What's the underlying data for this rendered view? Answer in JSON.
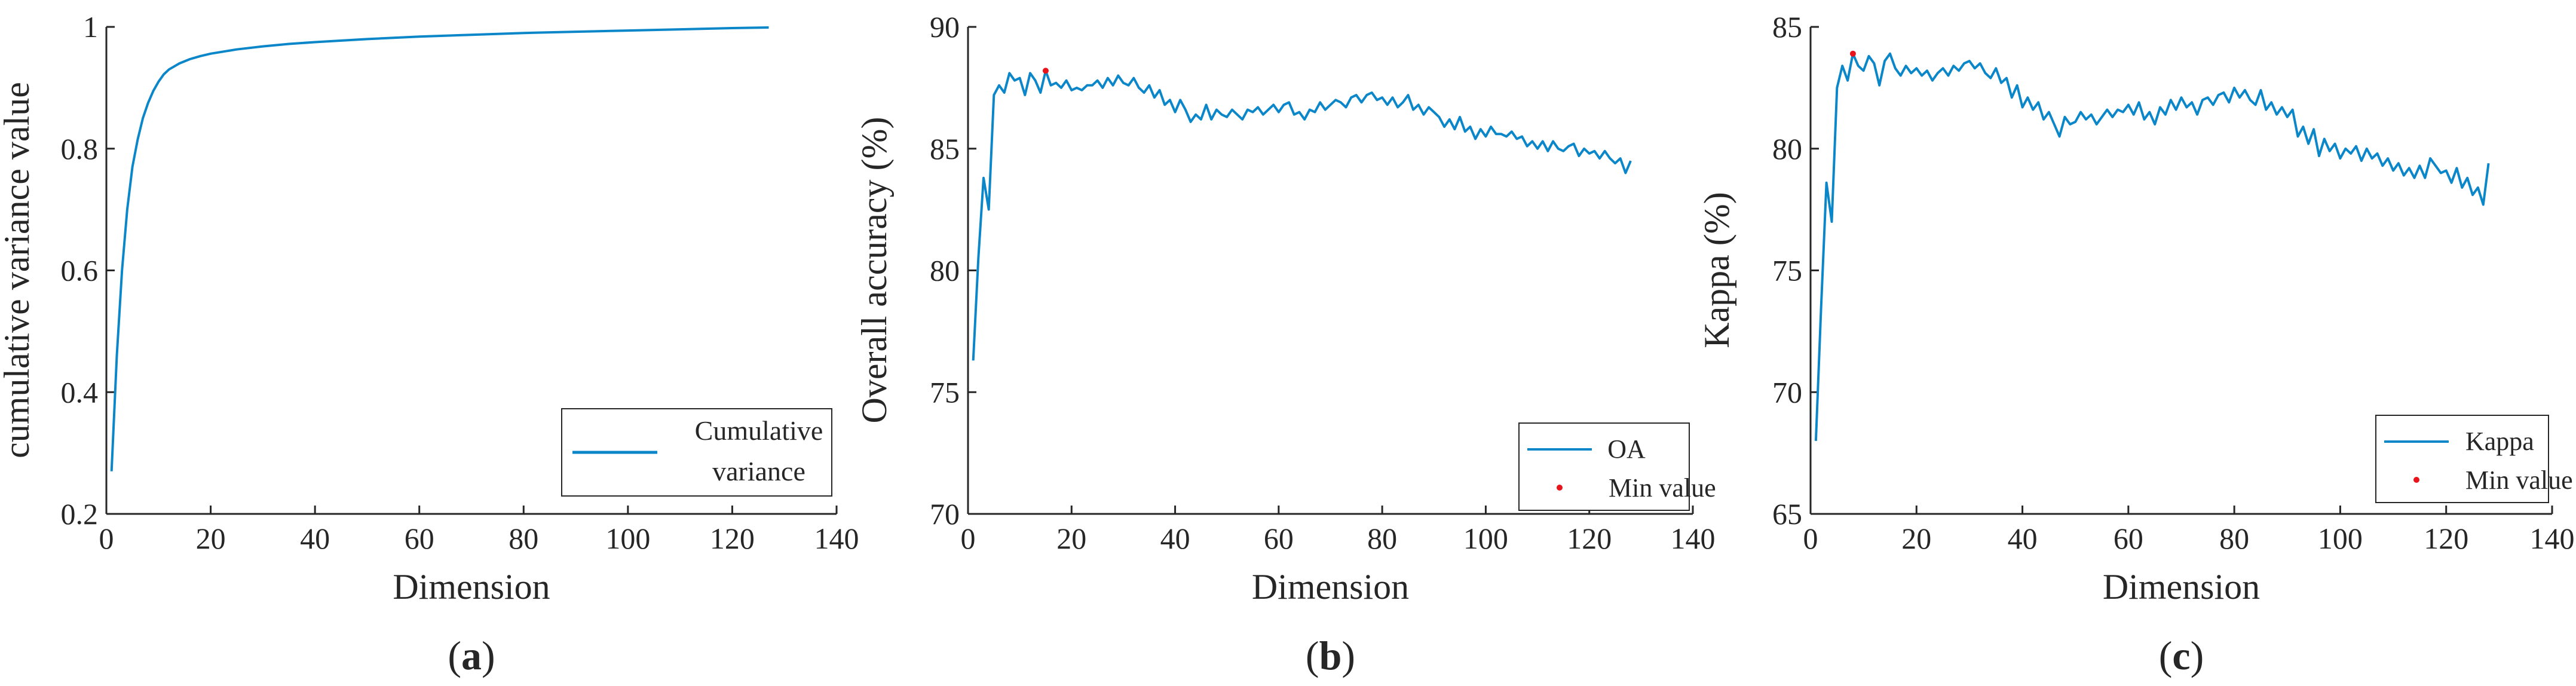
{
  "colors": {
    "line": "#0b87c9",
    "marker": "#e8131b",
    "axis": "#262626",
    "legend_border": "#262626"
  },
  "chart_data": [
    {
      "type": "line",
      "panel_label": "(a)",
      "panel_letter": "a",
      "xlabel": "Dimension",
      "ylabel": "cumulative variance value",
      "xlim": [
        0,
        140
      ],
      "ylim": [
        0.2,
        1
      ],
      "xticks": [
        0,
        20,
        40,
        60,
        80,
        100,
        120,
        140
      ],
      "xtick_labels": [
        "0",
        "20",
        "40",
        "60",
        "80",
        "100",
        "120",
        "140"
      ],
      "yticks": [
        0.2,
        0.4,
        0.6,
        0.8,
        1
      ],
      "ytick_labels": [
        "0.2",
        "0.4",
        "0.6",
        "0.8",
        "1"
      ],
      "grid": false,
      "legend_position": "bottom-right",
      "legend": [
        "Cumulative",
        "variance"
      ],
      "series": [
        {
          "name": "Cumulative variance",
          "x": [
            1,
            2,
            3,
            4,
            5,
            6,
            7,
            8,
            9,
            10,
            11,
            12,
            14,
            16,
            18,
            20,
            25,
            30,
            35,
            40,
            50,
            60,
            70,
            80,
            90,
            100,
            110,
            120,
            127
          ],
          "values": [
            0.27,
            0.46,
            0.6,
            0.7,
            0.77,
            0.815,
            0.85,
            0.875,
            0.895,
            0.91,
            0.922,
            0.93,
            0.94,
            0.947,
            0.952,
            0.956,
            0.963,
            0.968,
            0.972,
            0.975,
            0.98,
            0.984,
            0.987,
            0.99,
            0.992,
            0.994,
            0.996,
            0.998,
            0.999
          ]
        }
      ]
    },
    {
      "type": "line",
      "panel_label": "(b)",
      "panel_letter": "b",
      "xlabel": "Dimension",
      "ylabel": "Overall accuracy (%)",
      "xlim": [
        0,
        140
      ],
      "ylim": [
        70,
        90
      ],
      "xticks": [
        0,
        20,
        40,
        60,
        80,
        100,
        120,
        140
      ],
      "xtick_labels": [
        "0",
        "20",
        "40",
        "60",
        "80",
        "100",
        "120",
        "140"
      ],
      "yticks": [
        70,
        75,
        80,
        85,
        90
      ],
      "ytick_labels": [
        "70",
        "75",
        "80",
        "85",
        "90"
      ],
      "grid": false,
      "legend_position": "bottom-right",
      "legend": [
        "OA",
        "Min value"
      ],
      "series": [
        {
          "name": "OA",
          "x": [
            1,
            2,
            3,
            4,
            5,
            6,
            7,
            8,
            9,
            10,
            11,
            12,
            13,
            14,
            15,
            16,
            17,
            18,
            19,
            20,
            21,
            22,
            23,
            24,
            25,
            26,
            27,
            28,
            29,
            30,
            31,
            32,
            33,
            34,
            35,
            36,
            37,
            38,
            39,
            40,
            41,
            42,
            43,
            44,
            45,
            46,
            47,
            48,
            49,
            50,
            51,
            52,
            53,
            54,
            55,
            56,
            57,
            58,
            59,
            60,
            61,
            62,
            63,
            64,
            65,
            66,
            67,
            68,
            69,
            70,
            71,
            72,
            73,
            74,
            75,
            76,
            77,
            78,
            79,
            80,
            81,
            82,
            83,
            84,
            85,
            86,
            87,
            88,
            89,
            90,
            91,
            92,
            93,
            94,
            95,
            96,
            97,
            98,
            99,
            100,
            101,
            102,
            103,
            104,
            105,
            106,
            107,
            108,
            109,
            110,
            111,
            112,
            113,
            114,
            115,
            116,
            117,
            118,
            119,
            120,
            121,
            122,
            123,
            124,
            125,
            126,
            127,
            128
          ],
          "values": [
            76.3,
            80.5,
            83.8,
            82.5,
            87.2,
            87.6,
            87.3,
            88.1,
            87.8,
            87.9,
            87.2,
            88.1,
            87.8,
            87.3,
            88.2,
            87.6,
            87.7,
            87.5,
            87.8,
            87.4,
            87.5,
            87.4,
            87.6,
            87.6,
            87.8,
            87.5,
            87.9,
            87.6,
            88.0,
            87.7,
            87.6,
            87.9,
            87.5,
            87.3,
            87.6,
            87.1,
            87.4,
            86.8,
            87.0,
            86.5,
            87.0,
            86.6,
            86.1,
            86.4,
            86.2,
            86.8,
            86.2,
            86.6,
            86.4,
            86.3,
            86.6,
            86.4,
            86.2,
            86.6,
            86.5,
            86.7,
            86.4,
            86.6,
            86.8,
            86.5,
            86.8,
            86.9,
            86.4,
            86.5,
            86.2,
            86.6,
            86.5,
            86.9,
            86.6,
            86.8,
            87.0,
            86.9,
            86.7,
            87.1,
            87.2,
            86.9,
            87.2,
            87.3,
            87.0,
            87.1,
            86.8,
            87.1,
            86.7,
            86.9,
            87.2,
            86.6,
            86.8,
            86.4,
            86.7,
            86.5,
            86.3,
            85.9,
            86.2,
            85.8,
            86.3,
            85.7,
            85.9,
            85.4,
            85.8,
            85.5,
            85.9,
            85.6,
            85.6,
            85.5,
            85.7,
            85.4,
            85.5,
            85.1,
            85.3,
            85.0,
            85.3,
            84.9,
            85.3,
            85.0,
            84.9,
            85.1,
            85.2,
            84.7,
            85.0,
            84.8,
            84.9,
            84.6,
            84.9,
            84.6,
            84.4,
            84.6,
            84.0,
            84.5
          ]
        }
      ],
      "marker_point": {
        "label": "Min value",
        "x": 15,
        "y": 88.2
      }
    },
    {
      "type": "line",
      "panel_label": "(c)",
      "panel_letter": "c",
      "xlabel": "Dimension",
      "ylabel": "Kappa (%)",
      "xlim": [
        0,
        140
      ],
      "ylim": [
        65,
        85
      ],
      "xticks": [
        0,
        20,
        40,
        60,
        80,
        100,
        120,
        140
      ],
      "xtick_labels": [
        "0",
        "20",
        "40",
        "60",
        "80",
        "100",
        "120",
        "140"
      ],
      "yticks": [
        65,
        70,
        75,
        80,
        85
      ],
      "ytick_labels": [
        "65",
        "70",
        "75",
        "80",
        "85"
      ],
      "grid": false,
      "legend_position": "bottom-right",
      "legend": [
        "Kappa",
        "Min value"
      ],
      "series": [
        {
          "name": "Kappa",
          "x": [
            1,
            2,
            3,
            4,
            5,
            6,
            7,
            8,
            9,
            10,
            11,
            12,
            13,
            14,
            15,
            16,
            17,
            18,
            19,
            20,
            21,
            22,
            23,
            24,
            25,
            26,
            27,
            28,
            29,
            30,
            31,
            32,
            33,
            34,
            35,
            36,
            37,
            38,
            39,
            40,
            41,
            42,
            43,
            44,
            45,
            46,
            47,
            48,
            49,
            50,
            51,
            52,
            53,
            54,
            55,
            56,
            57,
            58,
            59,
            60,
            61,
            62,
            63,
            64,
            65,
            66,
            67,
            68,
            69,
            70,
            71,
            72,
            73,
            74,
            75,
            76,
            77,
            78,
            79,
            80,
            81,
            82,
            83,
            84,
            85,
            86,
            87,
            88,
            89,
            90,
            91,
            92,
            93,
            94,
            95,
            96,
            97,
            98,
            99,
            100,
            101,
            102,
            103,
            104,
            105,
            106,
            107,
            108,
            109,
            110,
            111,
            112,
            113,
            114,
            115,
            116,
            117,
            118,
            119,
            120,
            121,
            122,
            123,
            124,
            125,
            126,
            127,
            128
          ],
          "values": [
            68.0,
            73.5,
            78.6,
            77.0,
            82.5,
            83.4,
            82.8,
            83.9,
            83.4,
            83.2,
            83.8,
            83.5,
            82.6,
            83.6,
            83.9,
            83.3,
            83.0,
            83.4,
            83.1,
            83.3,
            83.0,
            83.2,
            82.8,
            83.1,
            83.3,
            83.0,
            83.4,
            83.2,
            83.5,
            83.6,
            83.3,
            83.5,
            83.1,
            82.9,
            83.3,
            82.7,
            82.9,
            82.1,
            82.6,
            81.7,
            82.1,
            81.6,
            81.9,
            81.2,
            81.5,
            81.0,
            80.5,
            81.3,
            81.0,
            81.1,
            81.5,
            81.2,
            81.4,
            81.0,
            81.3,
            81.6,
            81.3,
            81.6,
            81.5,
            81.8,
            81.4,
            81.9,
            81.2,
            81.5,
            81.0,
            81.7,
            81.4,
            82.0,
            81.6,
            82.1,
            81.7,
            81.9,
            81.4,
            82.0,
            82.1,
            81.8,
            82.2,
            82.3,
            81.9,
            82.5,
            82.1,
            82.4,
            82.0,
            81.8,
            82.4,
            81.6,
            81.9,
            81.4,
            81.7,
            81.3,
            81.6,
            80.5,
            80.9,
            80.2,
            80.8,
            79.7,
            80.4,
            79.9,
            80.2,
            79.6,
            80.0,
            79.8,
            80.1,
            79.5,
            80.0,
            79.6,
            79.8,
            79.3,
            79.6,
            79.1,
            79.4,
            78.9,
            79.2,
            78.8,
            79.3,
            78.8,
            79.6,
            79.3,
            79.0,
            79.1,
            78.6,
            79.2,
            78.4,
            78.8,
            78.1,
            78.4,
            77.7,
            79.4
          ]
        }
      ],
      "marker_point": {
        "label": "Min value",
        "x": 8,
        "y": 83.9
      }
    }
  ]
}
